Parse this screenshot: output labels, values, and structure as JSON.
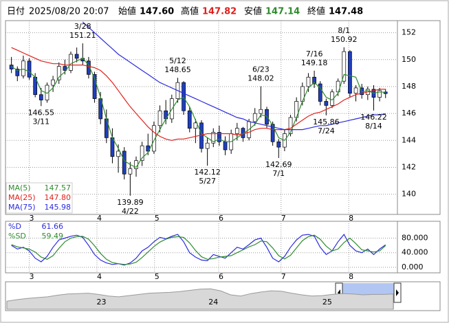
{
  "header": {
    "date_label": "日付",
    "datetime": "2025/08/20 20:07",
    "open_label": "始値",
    "open": "147.60",
    "high_label": "高値",
    "high": "147.82",
    "low_label": "安値",
    "low": "147.14",
    "close_label": "終値",
    "close": "147.48"
  },
  "chart_data": {
    "type": "candlestick",
    "up_color": "#ffffff",
    "down_color": "#1f3fbf",
    "grid": true,
    "xlim": [
      -1,
      65
    ],
    "xticks": [
      {
        "value": 3,
        "label": "3"
      },
      {
        "value": 14.4,
        "label": "4"
      },
      {
        "value": 24.1,
        "label": "5"
      },
      {
        "value": 34.9,
        "label": "6"
      },
      {
        "value": 45.4,
        "label": "7"
      },
      {
        "value": 56.8,
        "label": "8"
      }
    ],
    "ylim": [
      138.5,
      152.9
    ],
    "yticks": [
      140,
      142,
      144,
      146,
      148,
      150,
      152
    ],
    "candles": [
      [
        149.6,
        150.2,
        149.0,
        149.3
      ],
      [
        149.3,
        149.5,
        148.4,
        148.8
      ],
      [
        148.8,
        150.3,
        148.6,
        149.9
      ],
      [
        149.9,
        150.1,
        148.5,
        148.7
      ],
      [
        148.7,
        149.0,
        147.2,
        147.4
      ],
      [
        147.4,
        147.9,
        146.55,
        147.0
      ],
      [
        147.0,
        148.3,
        146.8,
        148.1
      ],
      [
        148.1,
        148.8,
        147.6,
        148.5
      ],
      [
        148.5,
        149.8,
        148.2,
        149.5
      ],
      [
        149.5,
        150.0,
        148.9,
        149.2
      ],
      [
        149.2,
        150.6,
        149.0,
        150.4
      ],
      [
        150.4,
        150.9,
        149.8,
        150.1
      ],
      [
        150.1,
        151.21,
        149.6,
        149.9
      ],
      [
        149.9,
        150.2,
        148.6,
        148.9
      ],
      [
        148.9,
        149.1,
        146.8,
        147.1
      ],
      [
        147.1,
        147.6,
        145.2,
        145.6
      ],
      [
        145.6,
        146.3,
        143.8,
        144.2
      ],
      [
        144.2,
        144.9,
        142.3,
        142.8
      ],
      [
        142.8,
        143.7,
        141.6,
        143.2
      ],
      [
        143.2,
        143.5,
        141.1,
        141.5
      ],
      [
        141.5,
        142.4,
        139.89,
        141.9
      ],
      [
        141.9,
        142.8,
        141.3,
        142.5
      ],
      [
        142.5,
        143.9,
        142.1,
        143.6
      ],
      [
        143.6,
        144.5,
        142.9,
        143.2
      ],
      [
        143.2,
        145.4,
        143.0,
        145.1
      ],
      [
        145.1,
        146.6,
        144.6,
        146.2
      ],
      [
        146.2,
        147.0,
        145.2,
        145.6
      ],
      [
        145.6,
        147.4,
        145.3,
        147.1
      ],
      [
        147.1,
        148.65,
        146.8,
        148.3
      ],
      [
        148.3,
        148.4,
        145.9,
        146.2
      ],
      [
        146.2,
        146.5,
        144.6,
        144.9
      ],
      [
        144.9,
        145.6,
        143.8,
        145.3
      ],
      [
        145.3,
        145.5,
        143.1,
        143.4
      ],
      [
        143.4,
        144.2,
        142.12,
        143.8
      ],
      [
        143.8,
        144.9,
        143.5,
        144.6
      ],
      [
        144.6,
        145.1,
        143.6,
        143.9
      ],
      [
        143.9,
        144.3,
        142.9,
        143.3
      ],
      [
        143.3,
        144.8,
        143.0,
        144.5
      ],
      [
        144.5,
        145.3,
        144.0,
        144.9
      ],
      [
        144.9,
        145.0,
        143.9,
        144.2
      ],
      [
        144.2,
        145.6,
        144.0,
        145.4
      ],
      [
        145.4,
        146.4,
        145.1,
        146.0
      ],
      [
        146.0,
        148.02,
        145.7,
        146.3
      ],
      [
        146.3,
        146.5,
        144.9,
        145.2
      ],
      [
        145.2,
        145.4,
        143.6,
        143.9
      ],
      [
        143.9,
        144.1,
        142.69,
        143.5
      ],
      [
        143.5,
        144.8,
        143.2,
        144.5
      ],
      [
        144.5,
        145.9,
        144.3,
        145.7
      ],
      [
        145.7,
        147.2,
        145.4,
        146.9
      ],
      [
        146.9,
        148.3,
        146.6,
        148.0
      ],
      [
        148.0,
        149.0,
        147.6,
        148.7
      ],
      [
        148.7,
        149.18,
        147.9,
        148.2
      ],
      [
        148.2,
        148.4,
        146.6,
        146.9
      ],
      [
        146.9,
        147.1,
        145.86,
        146.6
      ],
      [
        146.6,
        147.8,
        146.4,
        147.6
      ],
      [
        147.6,
        148.6,
        147.3,
        148.4
      ],
      [
        148.4,
        150.92,
        148.2,
        150.6
      ],
      [
        150.6,
        150.7,
        147.2,
        147.5
      ],
      [
        147.5,
        148.1,
        146.9,
        147.9
      ],
      [
        147.9,
        148.2,
        147.1,
        147.4
      ],
      [
        147.4,
        148.0,
        147.0,
        147.8
      ],
      [
        147.8,
        148.1,
        146.22,
        147.2
      ],
      [
        147.2,
        147.9,
        146.9,
        147.7
      ],
      [
        147.6,
        147.82,
        147.14,
        147.48
      ]
    ],
    "annotations": [
      {
        "index": 5,
        "field": 2,
        "date": "3/11"
      },
      {
        "index": 12,
        "field": 1,
        "date": "3/28"
      },
      {
        "index": 20,
        "field": 2,
        "date": "4/22"
      },
      {
        "index": 28,
        "field": 1,
        "date": "5/12"
      },
      {
        "index": 33,
        "field": 2,
        "date": "5/27"
      },
      {
        "index": 42,
        "field": 1,
        "date": "6/23"
      },
      {
        "index": 45,
        "field": 2,
        "date": "7/1"
      },
      {
        "index": 51,
        "field": 1,
        "date": "7/16"
      },
      {
        "index": 53,
        "field": 2,
        "date": "7/24"
      },
      {
        "index": 56,
        "field": 1,
        "date": "8/1"
      },
      {
        "index": 61,
        "field": 2,
        "date": "8/14"
      }
    ],
    "series": [
      {
        "name": "MA(5)",
        "color": "#2e8b2e",
        "legend_value": "147.57",
        "values": [
          149.5,
          149.2,
          149.3,
          149.1,
          148.7,
          147.7,
          147.5,
          147.9,
          148.7,
          149.1,
          149.7,
          149.9,
          150.1,
          149.6,
          148.6,
          147.2,
          145.6,
          144.2,
          143.4,
          142.5,
          142.2,
          142.0,
          142.7,
          143.1,
          144.0,
          144.8,
          145.6,
          146.3,
          147.0,
          147.2,
          146.5,
          145.5,
          144.5,
          144.2,
          143.9,
          144.1,
          143.9,
          143.9,
          144.2,
          144.5,
          144.8,
          145.2,
          145.9,
          145.8,
          145.1,
          144.2,
          144.0,
          144.6,
          145.7,
          146.9,
          147.9,
          148.3,
          147.9,
          147.2,
          147.0,
          147.5,
          148.9,
          148.8,
          148.7,
          147.6,
          147.7,
          147.5,
          147.6,
          147.57
        ]
      },
      {
        "name": "MA(25)",
        "color": "#e0201c",
        "legend_value": "147.80",
        "values": [
          150.9,
          150.7,
          150.5,
          150.3,
          150.1,
          149.9,
          149.8,
          149.7,
          149.7,
          149.6,
          149.6,
          149.6,
          149.6,
          149.5,
          149.4,
          149.2,
          148.8,
          148.3,
          147.7,
          147.1,
          146.5,
          146.0,
          145.5,
          145.0,
          144.6,
          144.3,
          144.1,
          144.0,
          144.1,
          144.1,
          144.2,
          144.3,
          144.4,
          144.5,
          144.5,
          144.5,
          144.5,
          144.5,
          144.4,
          144.5,
          144.6,
          144.8,
          144.9,
          144.9,
          144.8,
          144.8,
          144.8,
          144.9,
          145.2,
          145.5,
          145.8,
          146.0,
          146.1,
          146.3,
          146.5,
          146.7,
          147.0,
          147.2,
          147.4,
          147.5,
          147.6,
          147.7,
          147.8,
          147.8
        ]
      },
      {
        "name": "MA(75)",
        "color": "#2a2ae0",
        "legend_value": "145.98",
        "values": [
          null,
          null,
          null,
          null,
          null,
          null,
          null,
          null,
          null,
          null,
          null,
          null,
          152.8,
          152.4,
          152.0,
          151.6,
          151.2,
          150.8,
          150.4,
          150.1,
          149.8,
          149.5,
          149.2,
          148.9,
          148.6,
          148.3,
          148.1,
          147.9,
          147.7,
          147.5,
          147.3,
          147.1,
          146.9,
          146.7,
          146.5,
          146.3,
          146.1,
          145.9,
          145.7,
          145.6,
          145.4,
          145.3,
          145.2,
          145.1,
          145.0,
          144.9,
          144.8,
          144.8,
          144.8,
          144.8,
          144.9,
          145.0,
          145.1,
          145.1,
          145.2,
          145.3,
          145.4,
          145.5,
          145.6,
          145.7,
          145.8,
          145.9,
          145.9,
          145.98
        ]
      }
    ]
  },
  "stochastic": {
    "type": "line",
    "ylim": [
      -15,
      126
    ],
    "yticks": [
      {
        "value": 0,
        "label": "0.000"
      },
      {
        "value": 40,
        "label": "40.000"
      },
      {
        "value": 80,
        "label": "80.000"
      }
    ],
    "series": [
      {
        "name": "%D",
        "color": "#2a2ae0",
        "values": [
          60,
          50,
          55,
          45,
          25,
          15,
          30,
          55,
          75,
          80,
          85,
          88,
          82,
          60,
          35,
          20,
          12,
          8,
          10,
          6,
          12,
          25,
          45,
          55,
          70,
          82,
          78,
          85,
          90,
          70,
          40,
          28,
          20,
          18,
          35,
          30,
          25,
          40,
          55,
          50,
          62,
          75,
          80,
          55,
          25,
          15,
          30,
          55,
          75,
          88,
          90,
          85,
          55,
          35,
          45,
          70,
          90,
          60,
          45,
          40,
          50,
          35,
          50,
          61.66
        ]
      },
      {
        "name": "%SD",
        "color": "#2e8b2e",
        "values": [
          62,
          56,
          53,
          50,
          42,
          28,
          22,
          32,
          52,
          70,
          80,
          84,
          85,
          77,
          59,
          38,
          22,
          13,
          10,
          8,
          9,
          14,
          27,
          42,
          57,
          69,
          77,
          82,
          84,
          82,
          67,
          46,
          29,
          22,
          24,
          28,
          30,
          32,
          40,
          48,
          56,
          62,
          72,
          70,
          53,
          32,
          23,
          33,
          53,
          73,
          84,
          88,
          77,
          58,
          45,
          50,
          68,
          80,
          65,
          48,
          45,
          42,
          45,
          59.49
        ]
      }
    ]
  },
  "navigator": {
    "type": "area",
    "color": "#999999",
    "xlim": [
      0,
      38
    ],
    "ylim": [
      110,
      175
    ],
    "xticks": [
      {
        "value": 9.3,
        "label": "23"
      },
      {
        "value": 20.3,
        "label": "24"
      },
      {
        "value": 31.5,
        "label": "25"
      }
    ],
    "values": [
      130,
      134,
      137,
      139,
      141,
      145,
      148,
      149,
      150,
      147,
      143,
      141,
      144,
      147,
      150,
      151,
      152,
      154,
      157,
      160,
      161,
      156,
      146,
      143,
      149,
      153,
      156,
      155,
      150,
      146,
      143,
      144,
      147,
      149,
      148,
      146,
      147,
      147,
      148
    ]
  }
}
